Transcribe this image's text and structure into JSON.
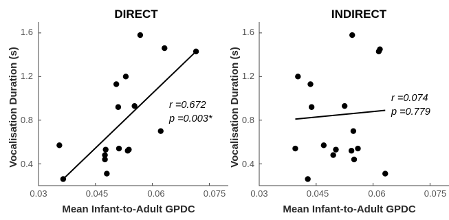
{
  "chart_data": [
    {
      "type": "scatter",
      "title": "DIRECT",
      "xlabel": "Mean Infant-to-Adult GPDC",
      "ylabel": "Vocalisation Duration (s)",
      "xlim": [
        0.03,
        0.08
      ],
      "ylim": [
        0.2,
        1.7
      ],
      "xticks": [
        "0.03",
        "0.045",
        "0.06",
        "0.075"
      ],
      "yticks": [
        "0.4",
        "0.8",
        "1.2",
        "1.6"
      ],
      "annotations": [
        "r =0.672",
        "p =0.003*"
      ],
      "points": [
        {
          "x": 0.0355,
          "y": 0.57
        },
        {
          "x": 0.0365,
          "y": 0.26
        },
        {
          "x": 0.0475,
          "y": 0.44
        },
        {
          "x": 0.0475,
          "y": 0.48
        },
        {
          "x": 0.0477,
          "y": 0.53
        },
        {
          "x": 0.048,
          "y": 0.31
        },
        {
          "x": 0.0505,
          "y": 1.13
        },
        {
          "x": 0.051,
          "y": 0.92
        },
        {
          "x": 0.0512,
          "y": 0.54
        },
        {
          "x": 0.0535,
          "y": 0.52
        },
        {
          "x": 0.0538,
          "y": 0.53
        },
        {
          "x": 0.053,
          "y": 1.2
        },
        {
          "x": 0.0553,
          "y": 0.93
        },
        {
          "x": 0.0568,
          "y": 1.58
        },
        {
          "x": 0.0622,
          "y": 0.7
        },
        {
          "x": 0.0632,
          "y": 1.46
        },
        {
          "x": 0.0715,
          "y": 1.43
        }
      ],
      "fit_line": {
        "x": [
          0.0365,
          0.0715
        ],
        "y": [
          0.26,
          1.43
        ]
      }
    },
    {
      "type": "scatter",
      "title": "INDIRECT",
      "xlabel": "Mean Infant-to-Adult GPDC",
      "ylabel": "Vocalisation Duration (s)",
      "xlim": [
        0.03,
        0.08
      ],
      "ylim": [
        0.2,
        1.7
      ],
      "xticks": [
        "0.03",
        "0.045",
        "0.06",
        "0.075"
      ],
      "yticks": [
        "0.4",
        "0.8",
        "1.2",
        "1.6"
      ],
      "annotations": [
        "r =0.074",
        "p =0.779"
      ],
      "points": [
        {
          "x": 0.0395,
          "y": 0.54
        },
        {
          "x": 0.0402,
          "y": 1.2
        },
        {
          "x": 0.0428,
          "y": 0.26
        },
        {
          "x": 0.0435,
          "y": 1.13
        },
        {
          "x": 0.0438,
          "y": 0.92
        },
        {
          "x": 0.047,
          "y": 0.57
        },
        {
          "x": 0.0495,
          "y": 0.48
        },
        {
          "x": 0.0502,
          "y": 0.53
        },
        {
          "x": 0.0525,
          "y": 0.93
        },
        {
          "x": 0.0543,
          "y": 0.52
        },
        {
          "x": 0.0545,
          "y": 1.58
        },
        {
          "x": 0.0548,
          "y": 0.7
        },
        {
          "x": 0.055,
          "y": 0.44
        },
        {
          "x": 0.056,
          "y": 0.54
        },
        {
          "x": 0.0615,
          "y": 1.43
        },
        {
          "x": 0.0618,
          "y": 1.45
        },
        {
          "x": 0.0632,
          "y": 0.31
        }
      ],
      "fit_line": {
        "x": [
          0.0395,
          0.0632
        ],
        "y": [
          0.81,
          0.89
        ]
      }
    }
  ]
}
